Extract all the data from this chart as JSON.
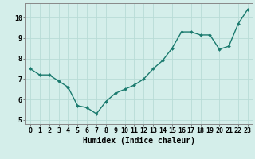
{
  "x": [
    0,
    1,
    2,
    3,
    4,
    5,
    6,
    7,
    8,
    9,
    10,
    11,
    12,
    13,
    14,
    15,
    16,
    17,
    18,
    19,
    20,
    21,
    22,
    23
  ],
  "y": [
    7.5,
    7.2,
    7.2,
    6.9,
    6.6,
    5.7,
    5.6,
    5.3,
    5.9,
    6.3,
    6.5,
    6.7,
    7.0,
    7.5,
    7.9,
    8.5,
    9.3,
    9.3,
    9.15,
    9.15,
    8.45,
    8.6,
    9.7,
    10.4
  ],
  "line_color": "#1a7a6e",
  "marker": "D",
  "marker_size": 2.0,
  "line_width": 1.0,
  "bg_color": "#d4eeea",
  "grid_color": "#b8dbd6",
  "xlabel": "Humidex (Indice chaleur)",
  "xlabel_fontsize": 7,
  "tick_fontsize": 6,
  "ylim": [
    4.8,
    10.7
  ],
  "xlim": [
    -0.5,
    23.5
  ],
  "yticks": [
    5,
    6,
    7,
    8,
    9,
    10
  ],
  "xticks": [
    0,
    1,
    2,
    3,
    4,
    5,
    6,
    7,
    8,
    9,
    10,
    11,
    12,
    13,
    14,
    15,
    16,
    17,
    18,
    19,
    20,
    21,
    22,
    23
  ]
}
